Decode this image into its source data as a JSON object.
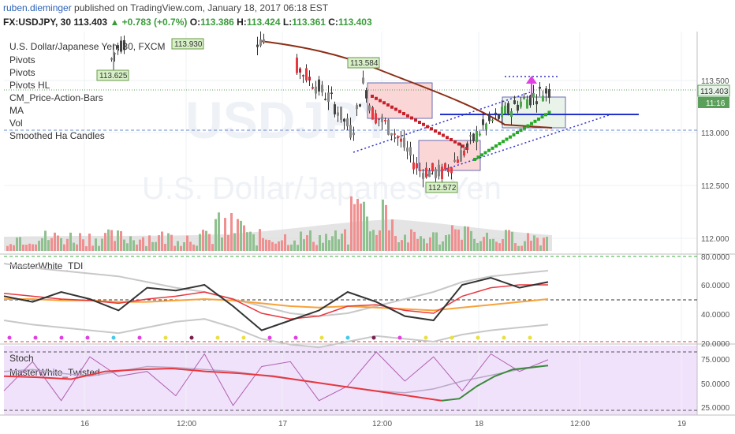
{
  "header": {
    "username": "ruben.dieminger",
    "published_text": " published on TradingView.com, January 18, 2017 06:18 EST",
    "symbol": "FX:USDJPY, 30",
    "last": "113.403",
    "change": "▲ +0.783 (+0.7%)",
    "open_label": "O:",
    "open": "113.386",
    "high_label": "H:",
    "high": "113.424",
    "low_label": "L:",
    "low": "113.361",
    "close_label": "C:",
    "close": "113.403"
  },
  "main_panel": {
    "title": "U.S. Dollar/Japanese Yen, 30, FXCM",
    "indicators": [
      "Pivots",
      "Pivots",
      "Pivots HL",
      "CM_Price-Action-Bars",
      "MA",
      "Vol",
      "Smoothed Ha Candles"
    ],
    "watermark_symbol": "USDJPY",
    "watermark_name": "U.S. Dollar/Japanese Yen",
    "pivot_labels": [
      "113.625",
      "113.930",
      "113.584",
      "112.572"
    ],
    "price_ticks": [
      "113.500",
      "113.000",
      "112.500",
      "112.000"
    ],
    "price_badge": "113.403",
    "countdown_badge": "11:16"
  },
  "tdi_panel": {
    "title": "MasterWhite_TDI",
    "ticks": [
      "80.0000",
      "60.0000",
      "40.0000",
      "20.0000"
    ]
  },
  "stoch_panel": {
    "title": "Stoch",
    "subtitle": "MasterWhite_Twisted",
    "ticks": [
      "75.0000",
      "50.0000",
      "25.0000"
    ]
  },
  "time_axis": {
    "labels": [
      "16",
      "12:00",
      "17",
      "12:00",
      "18",
      "12:00",
      "19"
    ]
  },
  "colors": {
    "bull": "#3d9970",
    "bear": "#e8373e",
    "ma": "#8b2e16",
    "stoch_bg": "#f0e0fa",
    "tdi_orange": "#f7a23a",
    "tdi_green": "#3a8a3a"
  },
  "chart_data": {
    "type": "candlestick",
    "title": "U.S. Dollar/Japanese Yen, 30, FXCM",
    "y_range": [
      111.85,
      113.95
    ],
    "x_labels": [
      "16",
      "12:00",
      "17",
      "12:00",
      "18",
      "12:00",
      "19"
    ],
    "price_levels": {
      "last": 113.403,
      "resistance": 113.15,
      "support_dashed": 113.02
    },
    "pivots": [
      {
        "label": "113.625",
        "value": 113.625
      },
      {
        "label": "113.930",
        "value": 113.93
      },
      {
        "label": "113.584",
        "value": 113.584
      },
      {
        "label": "112.572",
        "value": 112.572
      }
    ],
    "ohlc_sample": [
      [
        113.62,
        113.9,
        113.55,
        113.85
      ],
      [
        113.85,
        113.93,
        113.7,
        113.72
      ],
      [
        113.8,
        113.9,
        113.6,
        113.65
      ],
      [
        113.7,
        113.8,
        113.5,
        113.55
      ],
      [
        113.6,
        113.7,
        113.3,
        113.35
      ],
      [
        113.5,
        113.58,
        113.1,
        113.15
      ],
      [
        113.2,
        113.45,
        112.9,
        113.4
      ],
      [
        113.4,
        113.58,
        113.2,
        113.25
      ],
      [
        113.3,
        113.35,
        112.95,
        113.0
      ],
      [
        113.0,
        113.1,
        112.75,
        112.8
      ],
      [
        112.8,
        113.0,
        112.7,
        112.95
      ],
      [
        112.95,
        113.05,
        112.6,
        112.65
      ],
      [
        112.7,
        112.9,
        112.58,
        112.85
      ],
      [
        112.85,
        113.2,
        112.8,
        113.15
      ],
      [
        113.15,
        113.3,
        113.0,
        113.25
      ],
      [
        113.25,
        113.42,
        113.15,
        113.35
      ],
      [
        113.35,
        113.45,
        113.2,
        113.3
      ],
      [
        113.3,
        113.43,
        113.25,
        113.4
      ]
    ],
    "volume": [
      0.35,
      0.55,
      0.9,
      0.6,
      0.4,
      0.75,
      0.5,
      0.3,
      0.45,
      0.6,
      0.85,
      0.7,
      0.4,
      0.35,
      0.5,
      0.3,
      0.4,
      0.25
    ],
    "tdi": {
      "range": [
        15,
        85
      ],
      "price_line": [
        52,
        48,
        55,
        50,
        42,
        58,
        56,
        60,
        45,
        28,
        35,
        42,
        55,
        48,
        38,
        35,
        60,
        65,
        58,
        62
      ],
      "signal_line": [
        54,
        52,
        50,
        49,
        47,
        50,
        52,
        55,
        50,
        40,
        36,
        38,
        45,
        46,
        42,
        40,
        52,
        58,
        60,
        60
      ],
      "base_line": [
        50,
        50,
        49,
        49,
        48,
        48,
        49,
        50,
        49,
        47,
        45,
        44,
        45,
        44,
        43,
        42,
        44,
        46,
        48,
        50
      ]
    },
    "stoch": {
      "range": [
        20,
        80
      ],
      "k": [
        40,
        70,
        30,
        75,
        55,
        60,
        35,
        78,
        25,
        65,
        70,
        30,
        45,
        80,
        50,
        75,
        40,
        78,
        60,
        72
      ],
      "d": [
        55,
        54,
        52,
        60,
        62,
        63,
        60,
        58,
        55,
        50,
        45,
        40,
        35,
        30,
        32,
        45,
        55,
        62,
        64,
        66
      ]
    }
  }
}
